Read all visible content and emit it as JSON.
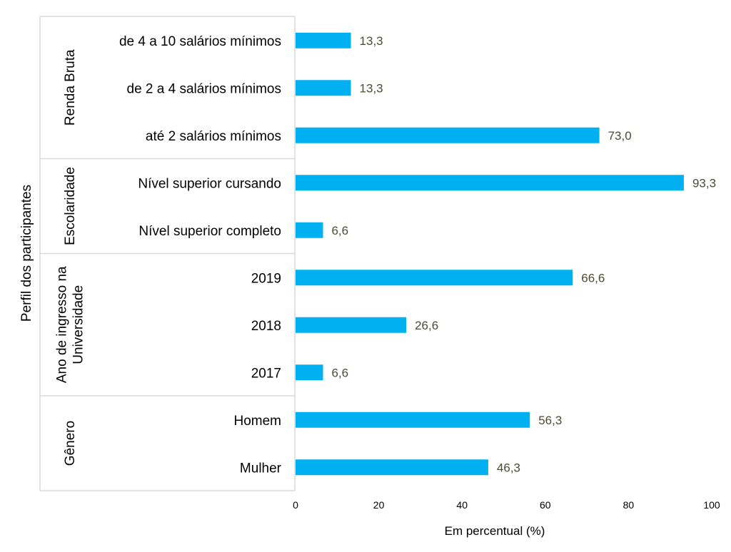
{
  "chart_data": {
    "type": "bar",
    "orientation": "horizontal",
    "title": "",
    "xlabel": "Em percentual (%)",
    "ylabel": "Perfil dos participantes",
    "xlim": [
      0,
      100
    ],
    "xticks": [
      "0",
      "20",
      "40",
      "60",
      "80",
      "100"
    ],
    "grid": false,
    "bar_color": "#00b0f0",
    "label_color": "#4d4a35",
    "groups": [
      {
        "name": "Renda Bruta",
        "lines": [
          "Renda Bruta"
        ],
        "categories": [
          "de 4 a 10 salários mínimos",
          "de 2 a 4 salários mínimos",
          "até 2 salários mínimos"
        ],
        "values": [
          13.3,
          13.3,
          73.0
        ],
        "labels": [
          "13,3",
          "13,3",
          "73,0"
        ]
      },
      {
        "name": "Escolaridade",
        "lines": [
          "Escolaridade"
        ],
        "categories": [
          "Nível superior cursando",
          "Nível superior completo"
        ],
        "values": [
          93.3,
          6.6
        ],
        "labels": [
          "93,3",
          "6,6"
        ]
      },
      {
        "name": "Ano de ingresso na Universidade",
        "lines": [
          "Ano de ingresso na",
          "Universidade"
        ],
        "categories": [
          "2019",
          "2018",
          "2017"
        ],
        "values": [
          66.6,
          26.6,
          6.6
        ],
        "labels": [
          "66,6",
          "26,6",
          "6,6"
        ]
      },
      {
        "name": "Gênero",
        "lines": [
          "Gênero"
        ],
        "categories": [
          "Homem",
          "Mulher"
        ],
        "values": [
          56.3,
          46.3
        ],
        "labels": [
          "56,3",
          "46,3"
        ]
      }
    ]
  }
}
